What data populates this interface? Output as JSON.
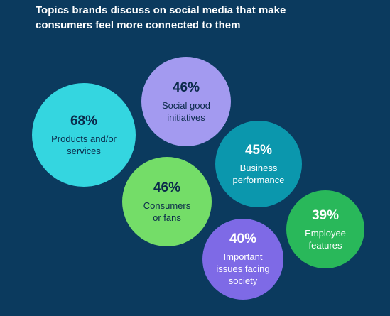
{
  "title_lines": [
    "Topics brands discuss on social media that make",
    "consumers feel more connected to them"
  ],
  "colors": {
    "background": "#0b3a5e",
    "dark_text": "#0b2a4a",
    "light_text": "#ffffff"
  },
  "chart_data": {
    "type": "bubble",
    "title": "Topics brands discuss on social media that make consumers feel more connected to them",
    "unit": "%",
    "items": [
      {
        "label_lines": [
          "Products and/or",
          "services"
        ],
        "value": 68,
        "value_label": "68%",
        "color": "#34d6e0"
      },
      {
        "label_lines": [
          "Social good",
          "initiatives"
        ],
        "value": 46,
        "value_label": "46%",
        "color": "#a39af0"
      },
      {
        "label_lines": [
          "Business",
          "performance"
        ],
        "value": 45,
        "value_label": "45%",
        "color": "#0b97ad"
      },
      {
        "label_lines": [
          "Consumers",
          "or fans"
        ],
        "value": 46,
        "value_label": "46%",
        "color": "#74dd68"
      },
      {
        "label_lines": [
          "Employee",
          "features"
        ],
        "value": 39,
        "value_label": "39%",
        "color": "#29b85a"
      },
      {
        "label_lines": [
          "Important",
          "issues facing",
          "society"
        ],
        "value": 40,
        "value_label": "40%",
        "color": "#7e6ae6"
      }
    ]
  }
}
